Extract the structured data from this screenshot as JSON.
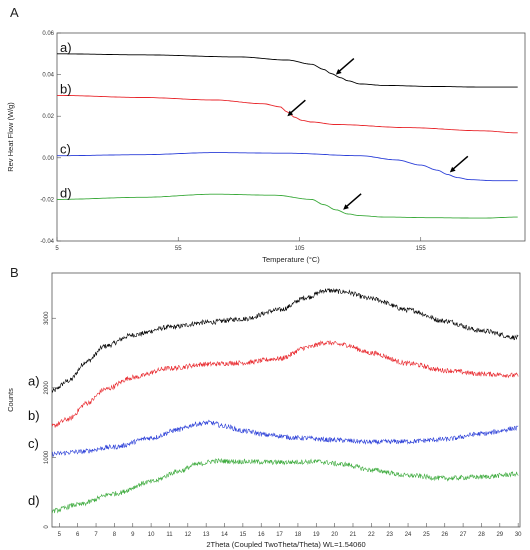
{
  "chart_data": [
    {
      "panel_label": "A",
      "type": "line",
      "xlabel": "Temperature (°C)",
      "ylabel": "Rev Heat Flow (W/g)",
      "xlim": [
        5,
        198
      ],
      "ylim": [
        -0.04,
        0.06
      ],
      "x_ticks": [
        "5",
        "55",
        "105",
        "155"
      ],
      "y_ticks": [
        "-0.04",
        "-0.02",
        "0.00",
        "0.02",
        "0.04",
        "0.06"
      ],
      "series": [
        {
          "label": "a)",
          "color": "#000000",
          "x": [
            5,
            40,
            80,
            100,
            110,
            115,
            118,
            122,
            125,
            130,
            140,
            160,
            180,
            195
          ],
          "y": [
            0.05,
            0.0495,
            0.0485,
            0.047,
            0.045,
            0.0425,
            0.0405,
            0.0385,
            0.037,
            0.0355,
            0.0348,
            0.0343,
            0.034,
            0.034
          ],
          "arrow": {
            "x": 120,
            "y": 0.04
          }
        },
        {
          "label": "b)",
          "color": "#e8262b",
          "x": [
            5,
            40,
            70,
            90,
            97,
            100,
            103,
            106,
            110,
            120,
            150,
            180,
            195
          ],
          "y": [
            0.03,
            0.029,
            0.0278,
            0.026,
            0.0245,
            0.022,
            0.0195,
            0.018,
            0.0172,
            0.016,
            0.0145,
            0.013,
            0.012
          ],
          "arrow": {
            "x": 100,
            "y": 0.02
          }
        },
        {
          "label": "c)",
          "color": "#2b3fd8",
          "x": [
            5,
            40,
            70,
            100,
            130,
            145,
            155,
            162,
            166,
            170,
            175,
            185,
            195
          ],
          "y": [
            0.001,
            0.0015,
            0.0025,
            0.0022,
            0.001,
            -0.001,
            -0.0035,
            -0.006,
            -0.008,
            -0.0095,
            -0.0105,
            -0.011,
            -0.011
          ],
          "arrow": {
            "x": 167,
            "y": -0.007
          }
        },
        {
          "label": "d)",
          "color": "#3caa3c",
          "x": [
            5,
            40,
            70,
            95,
            110,
            115,
            120,
            125,
            130,
            140,
            160,
            180,
            195
          ],
          "y": [
            -0.02,
            -0.019,
            -0.0175,
            -0.018,
            -0.02,
            -0.0225,
            -0.025,
            -0.027,
            -0.0278,
            -0.0285,
            -0.0288,
            -0.029,
            -0.0285
          ],
          "arrow": {
            "x": 123,
            "y": -0.025
          }
        }
      ]
    },
    {
      "panel_label": "B",
      "type": "line",
      "xlabel": "2Theta (Coupled TwoTheta/Theta) WL=1.54060",
      "ylabel": "Counts",
      "xlim": [
        4.6,
        30.1
      ],
      "ylim": [
        0,
        3650
      ],
      "x_ticks": [
        "5",
        "6",
        "7",
        "8",
        "9",
        "10",
        "11",
        "12",
        "13",
        "14",
        "15",
        "16",
        "17",
        "18",
        "19",
        "20",
        "21",
        "22",
        "23",
        "24",
        "25",
        "26",
        "27",
        "28",
        "29",
        "30"
      ],
      "y_ticks": [
        "0",
        "1000",
        "2000",
        "3000"
      ],
      "series": [
        {
          "label": "a)",
          "color": "#000000",
          "x": [
            4.6,
            5.5,
            6.5,
            7.5,
            9,
            11,
            13,
            15,
            17,
            18.5,
            19.5,
            20.5,
            22,
            24,
            26,
            28,
            30
          ],
          "y": [
            1950,
            2100,
            2380,
            2600,
            2760,
            2870,
            2940,
            2990,
            3120,
            3300,
            3400,
            3380,
            3280,
            3120,
            2960,
            2820,
            2720
          ]
        },
        {
          "label": "b)",
          "color": "#e8262b",
          "x": [
            4.6,
            5.5,
            6.5,
            7.5,
            9,
            11,
            13,
            15,
            17,
            18.5,
            19.5,
            20.5,
            22,
            24,
            26,
            28,
            30
          ],
          "y": [
            1450,
            1550,
            1780,
            1980,
            2150,
            2280,
            2340,
            2360,
            2420,
            2580,
            2650,
            2620,
            2500,
            2350,
            2250,
            2200,
            2180
          ]
        },
        {
          "label": "c)",
          "color": "#2b3fd8",
          "x": [
            4.6,
            6,
            8,
            10,
            11.5,
            12.5,
            13.2,
            14,
            15,
            16.5,
            18,
            20,
            22,
            24,
            26,
            28,
            30
          ],
          "y": [
            1050,
            1080,
            1150,
            1280,
            1400,
            1480,
            1500,
            1450,
            1380,
            1320,
            1280,
            1250,
            1220,
            1230,
            1260,
            1340,
            1420
          ]
        },
        {
          "label": "d)",
          "color": "#3caa3c",
          "x": [
            4.6,
            6,
            8,
            10,
            11.5,
            12.5,
            13.5,
            15,
            17,
            19,
            20.5,
            22,
            24,
            26,
            28,
            30
          ],
          "y": [
            230,
            320,
            480,
            650,
            800,
            900,
            950,
            940,
            930,
            940,
            900,
            820,
            740,
            700,
            720,
            760
          ]
        }
      ]
    }
  ]
}
